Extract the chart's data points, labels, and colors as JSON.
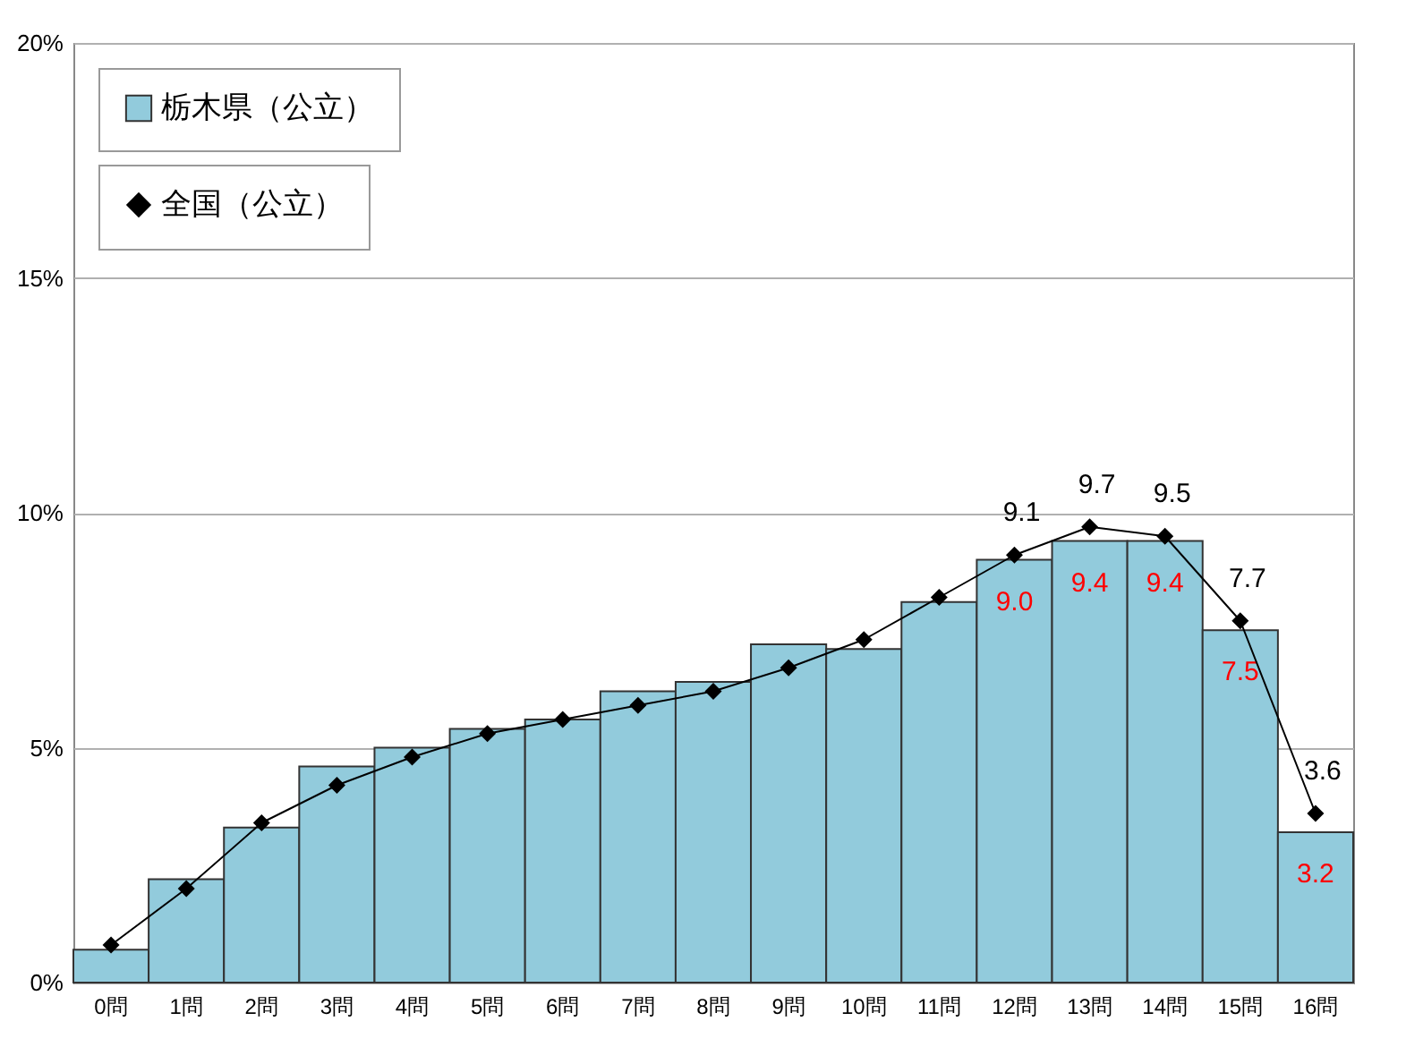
{
  "chart_data": {
    "type": "bar",
    "categories": [
      "0問",
      "1問",
      "2問",
      "3問",
      "4問",
      "5問",
      "6問",
      "7問",
      "8問",
      "9問",
      "10問",
      "11問",
      "12問",
      "13問",
      "14問",
      "15問",
      "16問"
    ],
    "series": [
      {
        "name": "栃木県（公立）",
        "color": "#92cbdc",
        "values": [
          0.7,
          2.2,
          3.3,
          4.6,
          5.0,
          5.4,
          5.6,
          6.2,
          6.4,
          7.2,
          7.1,
          8.1,
          9.0,
          9.4,
          9.4,
          7.5,
          3.2
        ],
        "value_labels": [
          null,
          null,
          null,
          null,
          null,
          null,
          null,
          null,
          null,
          null,
          null,
          null,
          "9.0",
          "9.4",
          "9.4",
          "7.5",
          "3.2"
        ]
      },
      {
        "name": "全国（公立）",
        "type": "line",
        "color": "#000000",
        "marker": "diamond",
        "values": [
          0.8,
          2.0,
          3.4,
          4.2,
          4.8,
          5.3,
          5.6,
          5.9,
          6.2,
          6.7,
          7.3,
          8.2,
          9.1,
          9.7,
          9.5,
          7.7,
          3.6
        ],
        "value_labels": [
          null,
          null,
          null,
          null,
          null,
          null,
          null,
          null,
          null,
          null,
          null,
          null,
          "9.1",
          "9.7",
          "9.5",
          "7.7",
          "3.6"
        ]
      }
    ],
    "ylim": [
      0,
      20
    ],
    "yticks": [
      {
        "value": 0,
        "label": "0%"
      },
      {
        "value": 5,
        "label": "5%"
      },
      {
        "value": 10,
        "label": "10%"
      },
      {
        "value": 15,
        "label": "15%"
      },
      {
        "value": 20,
        "label": "20%"
      }
    ],
    "grid": "y",
    "legend": "top left"
  }
}
